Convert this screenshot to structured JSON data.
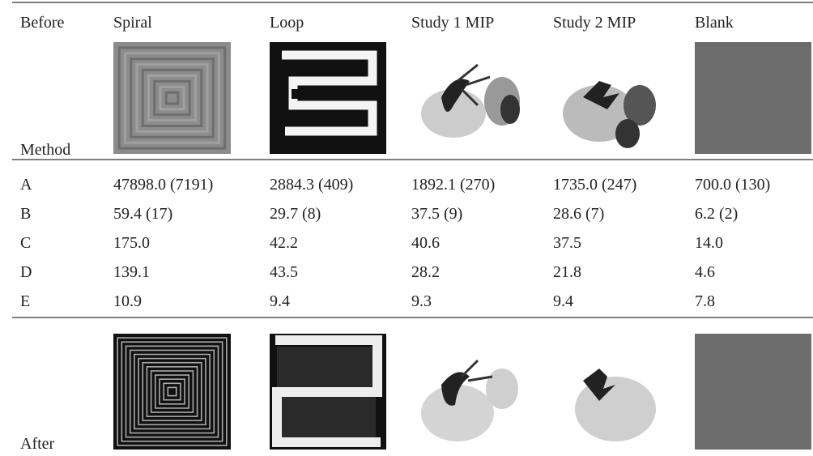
{
  "table": {
    "header": {
      "before": "Before",
      "method": "Method",
      "columns": [
        "Spiral",
        "Loop",
        "Study 1 MIP",
        "Study 2 MIP",
        "Blank"
      ]
    },
    "rows": [
      [
        "A",
        "47898.0 (7191)",
        "2884.3 (409)",
        "1892.1 (270)",
        "1735.0 (247)",
        "700.0 (130)"
      ],
      [
        "B",
        "59.4 (17)",
        "29.7 (8)",
        "37.5 (9)",
        "28.6 (7)",
        "6.2 (2)"
      ],
      [
        "C",
        "175.0",
        "42.2",
        "40.6",
        "37.5",
        "14.0"
      ],
      [
        "D",
        "139.1",
        "43.5",
        "28.2",
        "21.8",
        "4.6"
      ],
      [
        "E",
        "10.9",
        "9.4",
        "9.3",
        "9.4",
        "7.8"
      ]
    ],
    "after": "After"
  }
}
